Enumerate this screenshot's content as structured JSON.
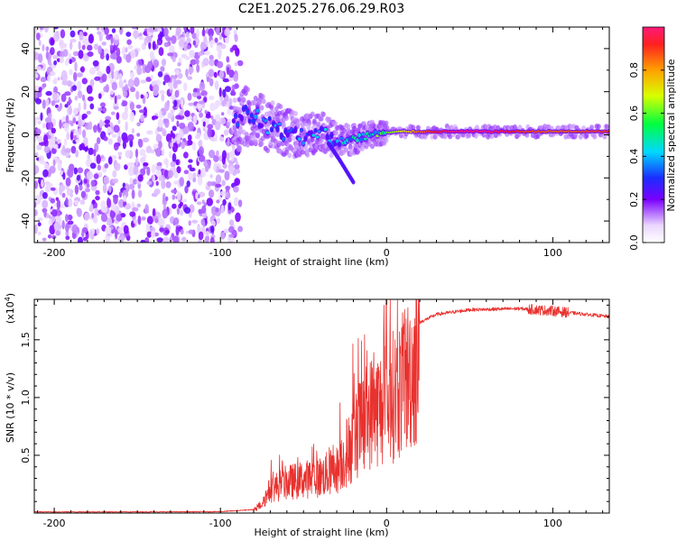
{
  "title": "C2E1.2025.276.06.29.R03",
  "chart_data": [
    {
      "type": "heatmap",
      "xlabel": "Height of straight line (km)",
      "ylabel": "Frequency (Hz)",
      "xlim": [
        -212,
        134
      ],
      "ylim": [
        -50,
        50
      ],
      "xticks": [
        -200,
        -100,
        0,
        100
      ],
      "xtick_labels": [
        "-200",
        "-100",
        "0",
        "100"
      ],
      "yticks": [
        -40,
        -20,
        0,
        20,
        40
      ],
      "ytick_labels": [
        "-40",
        "-20",
        "0",
        "20",
        "40"
      ],
      "colorbar": {
        "label": "Normalized spectral amplitude",
        "range": [
          0,
          1
        ],
        "ticks": [
          0,
          0.2,
          0.4,
          0.6,
          0.8
        ],
        "tick_labels": [
          "0.0",
          "0.2",
          "0.4",
          "0.6",
          "0.8"
        ]
      },
      "noise_region_x": [
        -212,
        -88
      ],
      "signal_track": [
        {
          "x": -88,
          "freq": 9,
          "amp": 0.3
        },
        {
          "x": -80,
          "freq": 8,
          "amp": 0.35
        },
        {
          "x": -70,
          "freq": 4,
          "amp": 0.35
        },
        {
          "x": -60,
          "freq": 1,
          "amp": 0.35
        },
        {
          "x": -50,
          "freq": -1,
          "amp": 0.35
        },
        {
          "x": -40,
          "freq": 2,
          "amp": 0.4
        },
        {
          "x": -30,
          "freq": -3,
          "amp": 0.4
        },
        {
          "x": -20,
          "freq": -2,
          "amp": 0.45
        },
        {
          "x": -10,
          "freq": 0,
          "amp": 0.5
        },
        {
          "x": 0,
          "freq": 1,
          "amp": 0.6
        },
        {
          "x": 10,
          "freq": 1.5,
          "amp": 0.7
        },
        {
          "x": 20,
          "freq": 1.5,
          "amp": 0.85
        },
        {
          "x": 40,
          "freq": 1.5,
          "amp": 1.0
        },
        {
          "x": 60,
          "freq": 1.5,
          "amp": 1.0
        },
        {
          "x": 80,
          "freq": 1.5,
          "amp": 0.9
        },
        {
          "x": 100,
          "freq": 1.5,
          "amp": 0.85
        },
        {
          "x": 134,
          "freq": 1.5,
          "amp": 0.9
        }
      ],
      "branch_track": [
        {
          "x": -35,
          "freq": -4
        },
        {
          "x": -28,
          "freq": -12
        },
        {
          "x": -20,
          "freq": -22
        }
      ]
    },
    {
      "type": "line",
      "xlabel": "Height of straight line (km)",
      "ylabel": "SNR (10 * v/v)",
      "multiplier_label": "(x10",
      "multiplier_exponent": "4",
      "xlim": [
        -212,
        134
      ],
      "ylim": [
        0,
        18500
      ],
      "xticks": [
        -200,
        -100,
        0,
        100
      ],
      "xtick_labels": [
        "-200",
        "-100",
        "0",
        "100"
      ],
      "yticks": [
        5000,
        10000,
        15000
      ],
      "ytick_labels": [
        "0.5",
        "1.0",
        "1.5"
      ],
      "color": "#e8322f",
      "series_envelope": [
        {
          "x": -212,
          "y": 100
        },
        {
          "x": -150,
          "y": 100
        },
        {
          "x": -100,
          "y": 120
        },
        {
          "x": -80,
          "y": 300
        },
        {
          "x": -75,
          "y": 1000
        },
        {
          "x": -70,
          "y": 2500
        },
        {
          "x": -60,
          "y": 3200
        },
        {
          "x": -50,
          "y": 3500
        },
        {
          "x": -40,
          "y": 3800
        },
        {
          "x": -30,
          "y": 4500
        },
        {
          "x": -25,
          "y": 6000
        },
        {
          "x": -20,
          "y": 7500
        },
        {
          "x": -15,
          "y": 9500
        },
        {
          "x": -10,
          "y": 10500
        },
        {
          "x": -5,
          "y": 11000
        },
        {
          "x": 0,
          "y": 11500
        },
        {
          "x": 10,
          "y": 13500
        },
        {
          "x": 20,
          "y": 16500
        },
        {
          "x": 30,
          "y": 17200
        },
        {
          "x": 50,
          "y": 17600
        },
        {
          "x": 80,
          "y": 17700
        },
        {
          "x": 100,
          "y": 17500
        },
        {
          "x": 120,
          "y": 17200
        },
        {
          "x": 134,
          "y": 17000
        }
      ]
    }
  ]
}
